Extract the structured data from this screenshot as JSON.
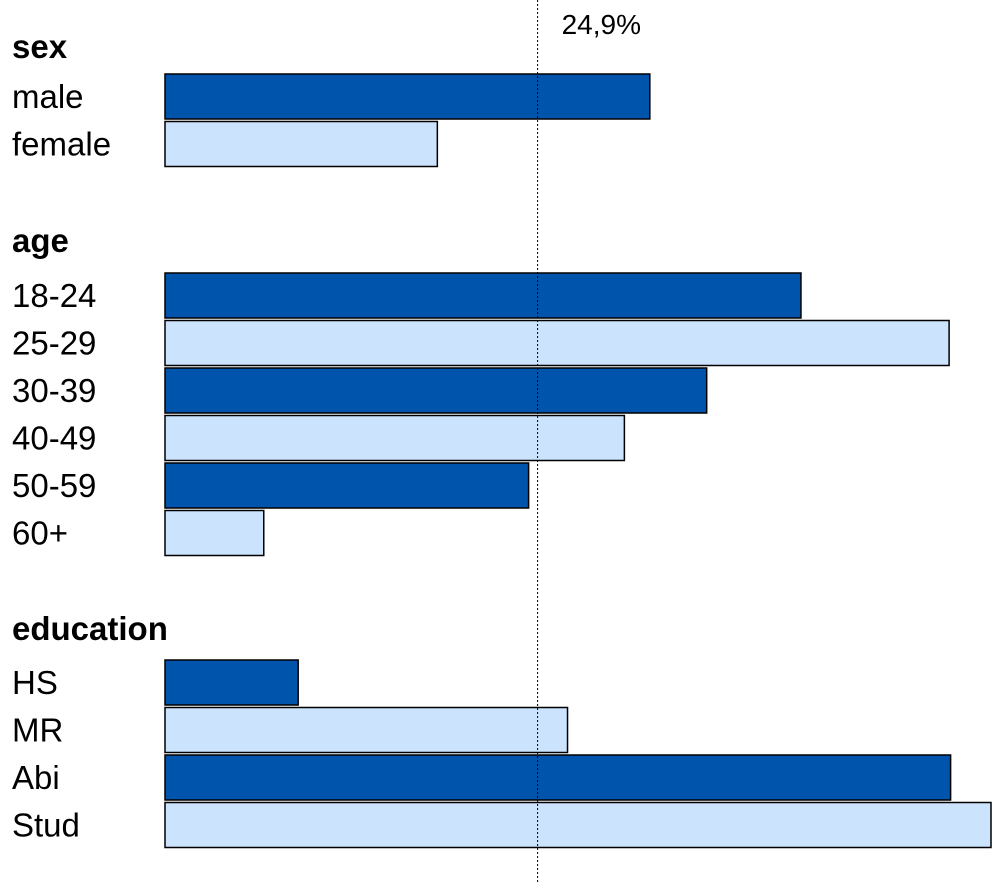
{
  "chart_data": {
    "type": "bar",
    "orientation": "horizontal",
    "title": "",
    "xlabel": "",
    "ylabel": "",
    "xlim": [
      0,
      55.2
    ],
    "grid": false,
    "reference_line": {
      "value": 24.9,
      "label": "24,9%"
    },
    "colors": {
      "dark": "#0054ab",
      "light": "#cbe3fc"
    },
    "groups": [
      {
        "title": "sex",
        "categories": [
          "male",
          "female"
        ],
        "values": [
          32.4,
          18.2
        ]
      },
      {
        "title": "age",
        "categories": [
          "18-24",
          "25-29",
          "30-39",
          "40-49",
          "50-59",
          "60+"
        ],
        "values": [
          42.5,
          52.4,
          36.2,
          30.7,
          24.3,
          6.6
        ]
      },
      {
        "title": "education",
        "categories": [
          "HS",
          "MR",
          "Abi",
          "Stud"
        ],
        "values": [
          8.9,
          26.9,
          52.5,
          55.2
        ]
      }
    ]
  }
}
